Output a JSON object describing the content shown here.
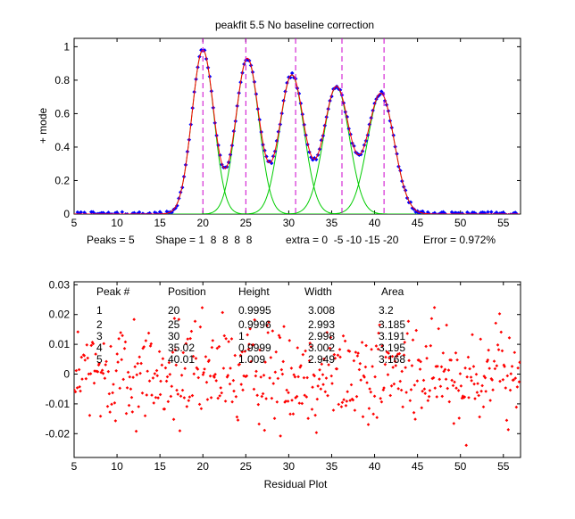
{
  "colors": {
    "fit_line": "#ff0000",
    "data_points": "#0000ff",
    "components": "#00cc00",
    "peak_markers": "#cc00cc",
    "residual_points": "#ff0000",
    "axes": "#000000"
  },
  "chart_data": [
    {
      "type": "line",
      "title": "peakfit 5.5   No baseline correction",
      "xlabel": "",
      "ylabel": "+ mode",
      "xlim": [
        5,
        57
      ],
      "ylim": [
        0,
        1.05
      ],
      "xticks": [
        5,
        10,
        15,
        20,
        25,
        30,
        35,
        40,
        45,
        50,
        55
      ],
      "yticks": [
        0,
        0.2,
        0.4,
        0.6,
        0.8,
        1
      ],
      "ytick_labels": [
        "0",
        "0.2",
        "0.4",
        "0.6",
        "0.8",
        "1"
      ],
      "grid": false,
      "series": [
        {
          "kind": "data points"
        },
        {
          "kind": "fitted model"
        },
        {
          "kind": "components"
        }
      ],
      "peaks": [
        {
          "position": 20,
          "height": 0.9995,
          "width": 3.008
        },
        {
          "position": 25,
          "height": 0.9996,
          "width": 2.993
        },
        {
          "position": 30,
          "height": 1,
          "width": 2.998
        },
        {
          "position": 35.02,
          "height": 0.9999,
          "width": 3.002
        },
        {
          "position": 40.01,
          "height": 1.009,
          "width": 2.949
        }
      ],
      "peak_heights_displayed": [
        0.98,
        0.93,
        0.83,
        0.76,
        0.72
      ],
      "peak_marker_x": [
        20,
        25,
        30.8,
        36.2,
        41.1
      ],
      "footer": {
        "peaks": "Peaks = 5",
        "shape": "Shape = 1  8  8  8  8",
        "extra": "extra = 0  -5 -10 -15 -20",
        "error": "Error = 0.972%"
      }
    },
    {
      "type": "scatter",
      "title": "",
      "xlabel": "Residual Plot",
      "ylabel": "",
      "xlim": [
        5,
        57
      ],
      "ylim": [
        -0.028,
        0.031
      ],
      "xticks": [
        5,
        10,
        15,
        20,
        25,
        30,
        35,
        40,
        45,
        50,
        55
      ],
      "yticks": [
        -0.02,
        -0.01,
        0,
        0.01,
        0.02,
        0.03
      ],
      "ytick_labels": [
        "-0.02",
        "-0.01",
        "0",
        "0.01",
        "0.02",
        "0.03"
      ],
      "grid": false,
      "residual_amplitude": 0.026,
      "residual_point_count": 500,
      "table": {
        "headers": [
          "Peak #",
          "Position",
          "Height",
          "Width",
          "Area"
        ],
        "rows": [
          [
            "1",
            "20",
            "0.9995",
            "3.008",
            "3.2"
          ],
          [
            "2",
            "25",
            "0.9996",
            "2.993",
            "3.185"
          ],
          [
            "3",
            "30",
            "1",
            "2.998",
            "3.191"
          ],
          [
            "4",
            "35.02",
            "0.9999",
            "3.002",
            "3.195"
          ],
          [
            "5",
            "40.01",
            "1.009",
            "2.949",
            "3.168"
          ]
        ]
      }
    }
  ]
}
